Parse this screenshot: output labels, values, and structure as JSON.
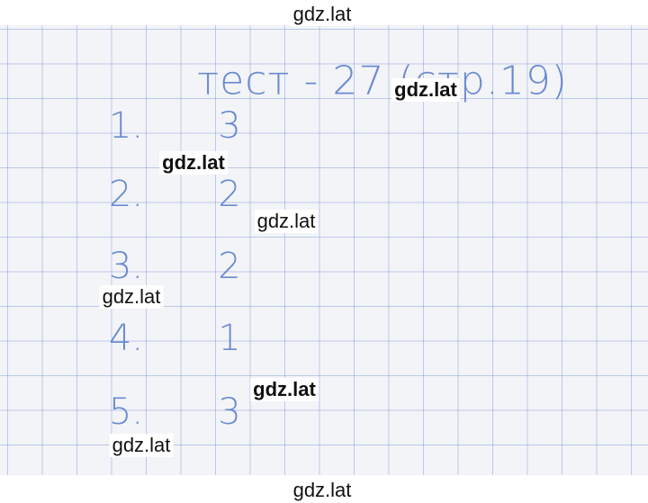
{
  "title": "тест - 27 (стр.19)",
  "answers": [
    {
      "number": "1.",
      "answer": "3"
    },
    {
      "number": "2.",
      "answer": "2"
    },
    {
      "number": "3.",
      "answer": "2"
    },
    {
      "number": "4.",
      "answer": "1"
    },
    {
      "number": "5.",
      "answer": "3"
    }
  ],
  "watermarks": [
    "gdz.lat",
    "gdz.lat",
    "gdz.lat",
    "gdz.lat",
    "gdz.lat",
    "gdz.lat",
    "gdz.lat",
    "gdz.lat"
  ]
}
